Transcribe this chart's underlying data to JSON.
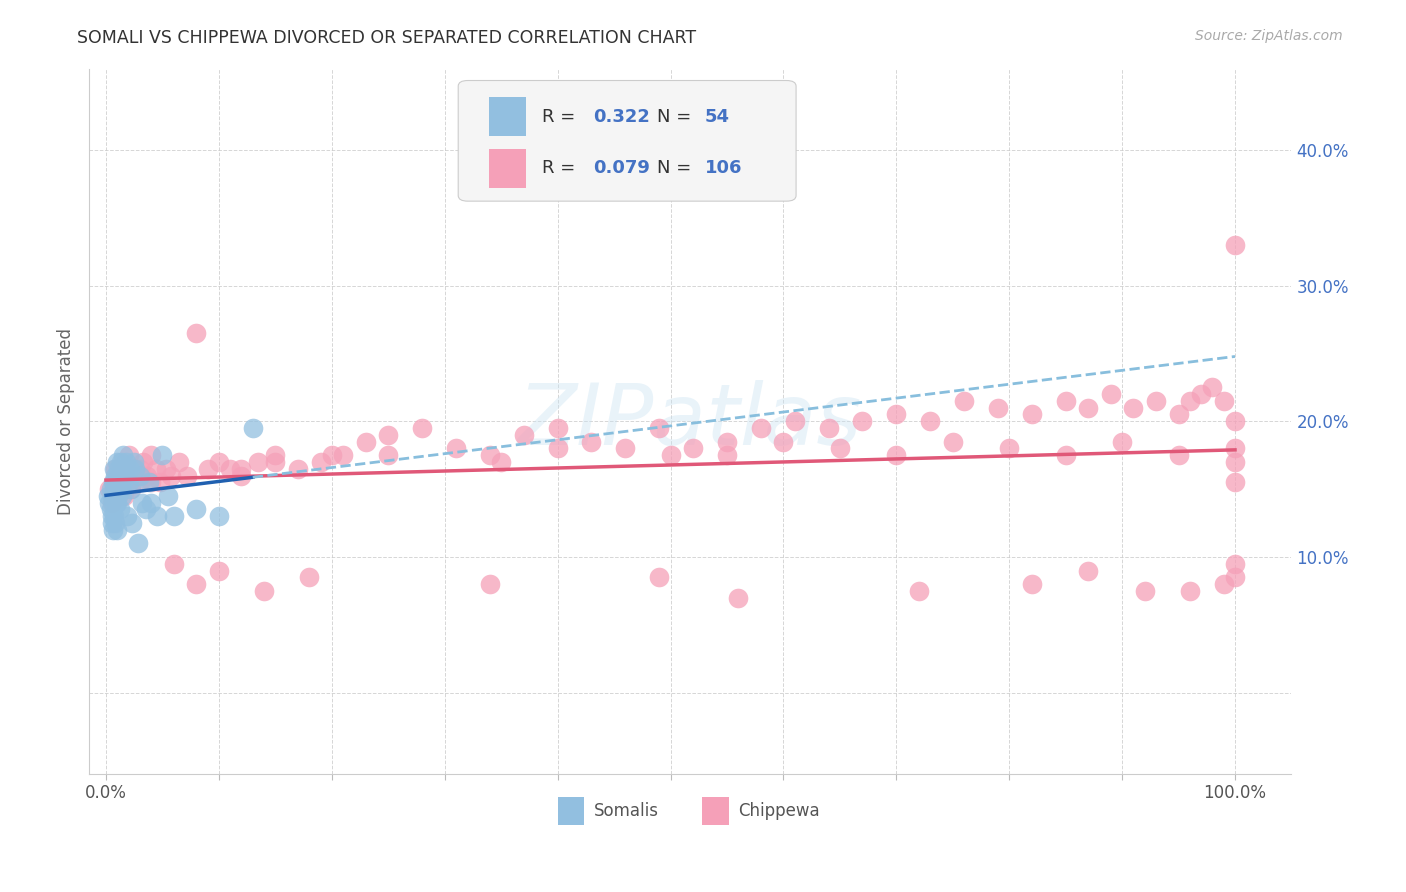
{
  "title": "SOMALI VS CHIPPEWA DIVORCED OR SEPARATED CORRELATION CHART",
  "source": "Source: ZipAtlas.com",
  "ylabel": "Divorced or Separated",
  "ytick_labels": [
    "",
    "10.0%",
    "20.0%",
    "30.0%",
    "40.0%"
  ],
  "ytick_vals": [
    0.0,
    0.1,
    0.2,
    0.3,
    0.4
  ],
  "xlim": [
    -0.015,
    1.05
  ],
  "ylim": [
    -0.06,
    0.46
  ],
  "legend_somali_R": "0.322",
  "legend_somali_N": "54",
  "legend_chippewa_R": "0.079",
  "legend_chippewa_N": "106",
  "somali_color": "#92bfe0",
  "chippewa_color": "#f5a0b8",
  "somali_line_color": "#2060b0",
  "chippewa_line_color": "#e05878",
  "dashed_line_color": "#88bedd",
  "watermark": "ZIPatlas",
  "background": "#ffffff",
  "somali_x": [
    0.002,
    0.003,
    0.004,
    0.004,
    0.005,
    0.005,
    0.005,
    0.006,
    0.006,
    0.006,
    0.007,
    0.007,
    0.007,
    0.008,
    0.008,
    0.008,
    0.009,
    0.009,
    0.01,
    0.01,
    0.01,
    0.01,
    0.011,
    0.011,
    0.012,
    0.012,
    0.013,
    0.013,
    0.014,
    0.015,
    0.015,
    0.016,
    0.017,
    0.018,
    0.019,
    0.02,
    0.021,
    0.022,
    0.023,
    0.025,
    0.026,
    0.028,
    0.03,
    0.032,
    0.035,
    0.038,
    0.04,
    0.045,
    0.05,
    0.055,
    0.06,
    0.08,
    0.1,
    0.13
  ],
  "somali_y": [
    0.145,
    0.14,
    0.135,
    0.15,
    0.13,
    0.125,
    0.145,
    0.155,
    0.14,
    0.12,
    0.165,
    0.15,
    0.13,
    0.16,
    0.145,
    0.125,
    0.155,
    0.14,
    0.17,
    0.155,
    0.14,
    0.12,
    0.165,
    0.145,
    0.16,
    0.135,
    0.17,
    0.15,
    0.145,
    0.175,
    0.155,
    0.165,
    0.16,
    0.17,
    0.13,
    0.155,
    0.165,
    0.15,
    0.125,
    0.17,
    0.165,
    0.11,
    0.16,
    0.14,
    0.135,
    0.155,
    0.14,
    0.13,
    0.175,
    0.145,
    0.13,
    0.135,
    0.13,
    0.195
  ],
  "chippewa_x": [
    0.003,
    0.005,
    0.007,
    0.008,
    0.01,
    0.01,
    0.012,
    0.014,
    0.015,
    0.016,
    0.018,
    0.02,
    0.022,
    0.025,
    0.028,
    0.03,
    0.033,
    0.036,
    0.04,
    0.044,
    0.048,
    0.053,
    0.058,
    0.065,
    0.072,
    0.08,
    0.09,
    0.1,
    0.11,
    0.12,
    0.135,
    0.15,
    0.17,
    0.19,
    0.21,
    0.23,
    0.25,
    0.28,
    0.31,
    0.34,
    0.37,
    0.4,
    0.43,
    0.46,
    0.49,
    0.52,
    0.55,
    0.58,
    0.61,
    0.64,
    0.67,
    0.7,
    0.73,
    0.76,
    0.79,
    0.82,
    0.85,
    0.87,
    0.89,
    0.91,
    0.93,
    0.95,
    0.96,
    0.97,
    0.98,
    0.99,
    1.0,
    1.0,
    1.0,
    1.0,
    0.02,
    0.03,
    0.04,
    0.12,
    0.15,
    0.2,
    0.25,
    0.35,
    0.4,
    0.5,
    0.55,
    0.6,
    0.65,
    0.7,
    0.75,
    0.8,
    0.85,
    0.9,
    0.95,
    1.0,
    0.06,
    0.08,
    0.1,
    0.14,
    0.18,
    0.34,
    0.49,
    0.56,
    0.72,
    0.82,
    0.87,
    0.92,
    0.96,
    0.99,
    1.0,
    1.0
  ],
  "chippewa_y": [
    0.15,
    0.14,
    0.155,
    0.165,
    0.145,
    0.16,
    0.15,
    0.165,
    0.155,
    0.145,
    0.16,
    0.155,
    0.15,
    0.165,
    0.16,
    0.155,
    0.17,
    0.16,
    0.155,
    0.165,
    0.155,
    0.165,
    0.16,
    0.17,
    0.16,
    0.265,
    0.165,
    0.17,
    0.165,
    0.16,
    0.17,
    0.175,
    0.165,
    0.17,
    0.175,
    0.185,
    0.175,
    0.195,
    0.18,
    0.175,
    0.19,
    0.195,
    0.185,
    0.18,
    0.195,
    0.18,
    0.185,
    0.195,
    0.2,
    0.195,
    0.2,
    0.205,
    0.2,
    0.215,
    0.21,
    0.205,
    0.215,
    0.21,
    0.22,
    0.21,
    0.215,
    0.205,
    0.215,
    0.22,
    0.225,
    0.215,
    0.33,
    0.2,
    0.17,
    0.155,
    0.175,
    0.165,
    0.175,
    0.165,
    0.17,
    0.175,
    0.19,
    0.17,
    0.18,
    0.175,
    0.175,
    0.185,
    0.18,
    0.175,
    0.185,
    0.18,
    0.175,
    0.185,
    0.175,
    0.18,
    0.095,
    0.08,
    0.09,
    0.075,
    0.085,
    0.08,
    0.085,
    0.07,
    0.075,
    0.08,
    0.09,
    0.075,
    0.075,
    0.08,
    0.095,
    0.085
  ]
}
